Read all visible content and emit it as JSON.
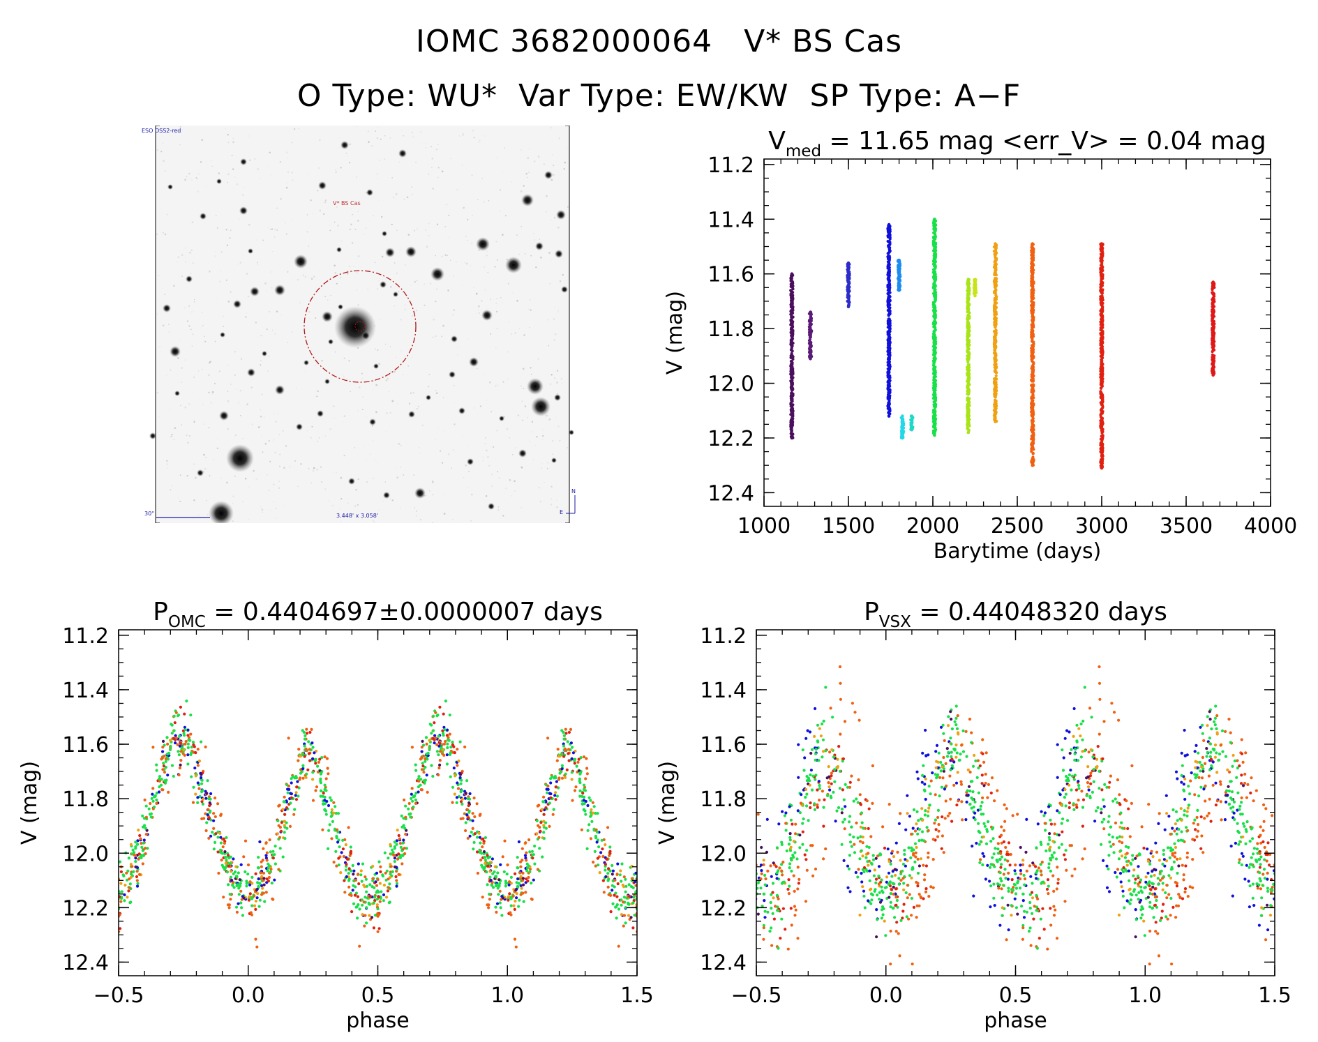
{
  "figure": {
    "title_line1": "IOMC 3682000064   V* BS Cas",
    "title_line2": "O Type: WU*  Var Type: EW/KW  SP Type: A−F"
  },
  "image_panel": {
    "survey_label": "ESO DSS2-red",
    "object_label": "V* BS Cas",
    "scale_label": "30\"",
    "fov_label": "3.448' x 3.058'",
    "north_label": "N",
    "east_label": "E"
  },
  "colors": {
    "axis": "#000000",
    "circle": "#b01818",
    "annotation_blue": "#1a1aa8",
    "annotation_red": "#c03030"
  },
  "chart_data": [
    {
      "type": "scatter",
      "panel": "light-curve",
      "title_base": "V",
      "title_sub": "med",
      "title_rest": " = 11.65 mag <err_V> = 0.04 mag",
      "xlabel": "Barytime (days)",
      "ylabel": "V (mag)",
      "xlim": [
        1000,
        4000
      ],
      "ylim": [
        12.45,
        11.18
      ],
      "xticks": [
        1000,
        1500,
        2000,
        2500,
        3000,
        3500,
        4000
      ],
      "xtick_labels": [
        "1000",
        "1500",
        "2000",
        "2500",
        "3000",
        "3500",
        "4000"
      ],
      "yticks": [
        11.2,
        11.4,
        11.6,
        11.8,
        12.0,
        12.2,
        12.4
      ],
      "ytick_labels": [
        "11.2",
        "11.4",
        "11.6",
        "11.8",
        "12.0",
        "12.2",
        "12.4"
      ],
      "series": [
        {
          "x": 1165,
          "ymin": 11.6,
          "ymax": 12.2,
          "color": "#4b0f5e"
        },
        {
          "x": 1275,
          "ymin": 11.74,
          "ymax": 11.91,
          "color": "#5a1a78"
        },
        {
          "x": 1500,
          "ymin": 11.56,
          "ymax": 11.72,
          "color": "#2c2cc8"
        },
        {
          "x": 1740,
          "ymin": 11.42,
          "ymax": 12.12,
          "color": "#1010dd"
        },
        {
          "x": 1800,
          "ymin": 11.55,
          "ymax": 11.66,
          "color": "#1a8cf0"
        },
        {
          "x": 1820,
          "ymin": 12.12,
          "ymax": 12.2,
          "color": "#20d8e8"
        },
        {
          "x": 1875,
          "ymin": 12.12,
          "ymax": 12.17,
          "color": "#20d8c8"
        },
        {
          "x": 2010,
          "ymin": 11.4,
          "ymax": 12.19,
          "color": "#18e048"
        },
        {
          "x": 2210,
          "ymin": 11.62,
          "ymax": 12.18,
          "color": "#a8e418"
        },
        {
          "x": 2250,
          "ymin": 11.62,
          "ymax": 11.68,
          "color": "#c8e418"
        },
        {
          "x": 2370,
          "ymin": 11.49,
          "ymax": 12.14,
          "color": "#f0a010"
        },
        {
          "x": 2590,
          "ymin": 11.49,
          "ymax": 12.3,
          "color": "#f06010"
        },
        {
          "x": 3000,
          "ymin": 11.49,
          "ymax": 12.31,
          "color": "#e02010"
        },
        {
          "x": 3660,
          "ymin": 11.63,
          "ymax": 11.97,
          "color": "#e01818"
        }
      ]
    },
    {
      "type": "scatter",
      "panel": "phase-omc",
      "title_base": "P",
      "title_sub": "OMC",
      "title_rest": " = 0.4404697±0.0000007 days",
      "xlabel": "phase",
      "ylabel": "V (mag)",
      "period_days": 0.4404697,
      "period_err_days": 7e-07,
      "xlim": [
        -0.5,
        1.5
      ],
      "ylim": [
        12.45,
        11.18
      ],
      "xticks": [
        -0.5,
        0.0,
        0.5,
        1.0,
        1.5
      ],
      "xtick_labels": [
        "−0.5",
        "0.0",
        "0.5",
        "1.0",
        "1.5"
      ],
      "yticks": [
        11.2,
        11.4,
        11.6,
        11.8,
        12.0,
        12.2,
        12.4
      ],
      "ytick_labels": [
        "11.2",
        "11.4",
        "11.6",
        "11.8",
        "12.0",
        "12.2",
        "12.4"
      ],
      "curve": {
        "max_mag": 11.58,
        "primary_min_mag": 12.14,
        "secondary_min_mag": 12.17,
        "max_phase": 0.22,
        "min_phase_1": 0.0,
        "min_phase_2": 0.47,
        "scatter_mag": 0.05
      },
      "series_colors": [
        "#1010dd",
        "#18e048",
        "#f06010",
        "#e02010",
        "#4b0f5e",
        "#f0a010"
      ]
    },
    {
      "type": "scatter",
      "panel": "phase-vsx",
      "title_base": "P",
      "title_sub": "VSX",
      "title_rest": " = 0.44048320 days",
      "xlabel": "phase",
      "ylabel": "V (mag)",
      "period_days": 0.4404832,
      "xlim": [
        -0.5,
        1.5
      ],
      "ylim": [
        12.45,
        11.18
      ],
      "xticks": [
        -0.5,
        0.0,
        0.5,
        1.0,
        1.5
      ],
      "xtick_labels": [
        "−0.5",
        "0.0",
        "0.5",
        "1.0",
        "1.5"
      ],
      "yticks": [
        11.2,
        11.4,
        11.6,
        11.8,
        12.0,
        12.2,
        12.4
      ],
      "ytick_labels": [
        "11.2",
        "11.4",
        "11.6",
        "11.8",
        "12.0",
        "12.2",
        "12.4"
      ],
      "curve": {
        "max_mag": 11.6,
        "primary_min_mag": 12.15,
        "secondary_min_mag": 12.17,
        "max_phase": 0.27,
        "min_phase_1": 0.0,
        "min_phase_2": 0.52,
        "scatter_mag": 0.08
      },
      "series_colors": [
        "#1010dd",
        "#18e048",
        "#f06010",
        "#e02010",
        "#4b0f5e",
        "#f0a010"
      ]
    }
  ]
}
